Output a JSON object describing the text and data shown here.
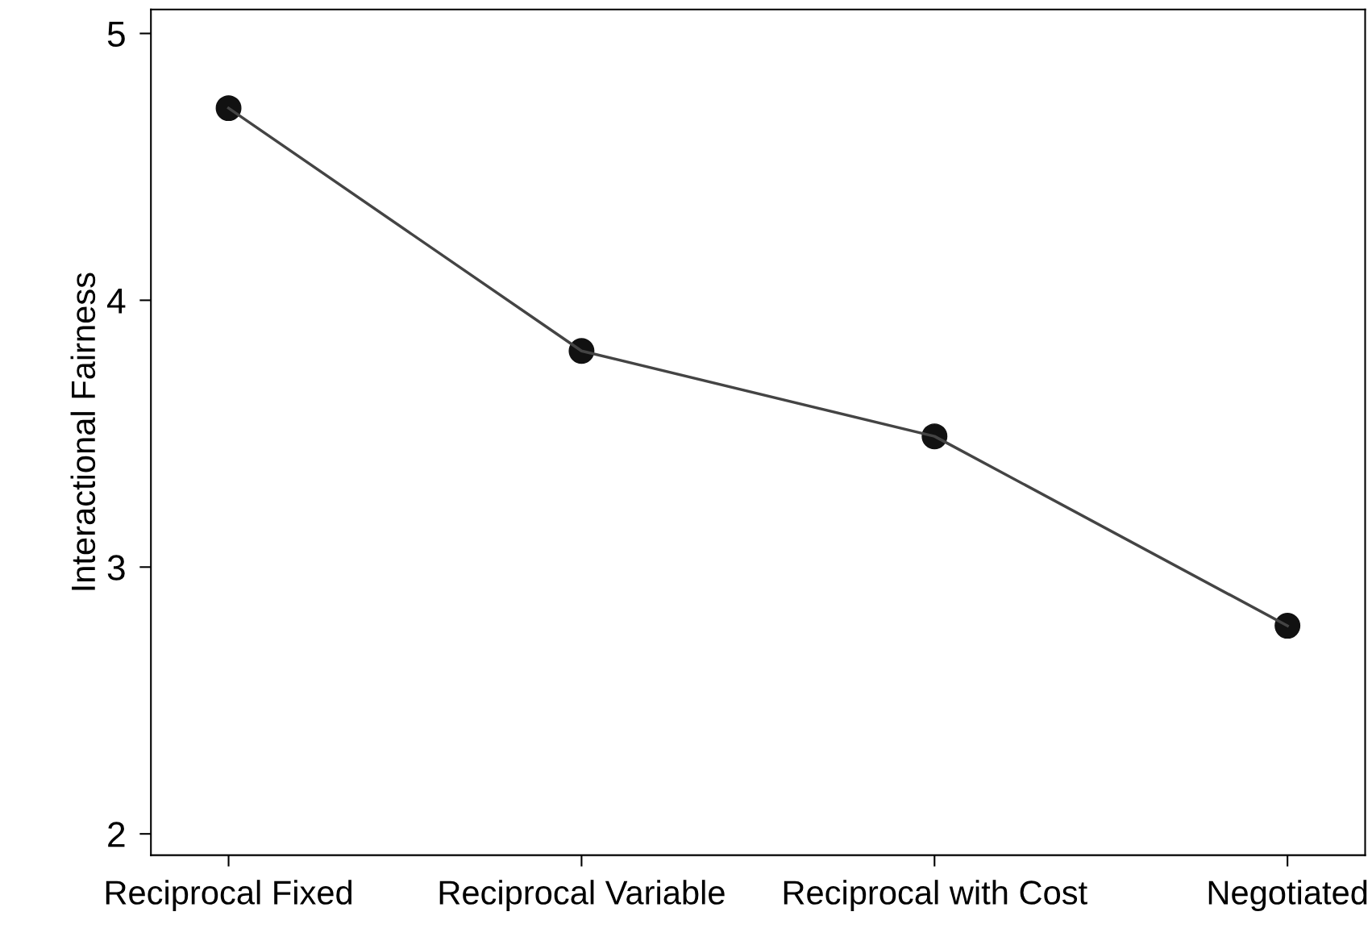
{
  "chart_data": {
    "type": "line",
    "ylabel": "Interactional Fairness",
    "categories": [
      "Reciprocal Fixed",
      "Reciprocal Variable",
      "Reciprocal with Cost",
      "Negotiated"
    ],
    "series": [
      {
        "color": "#444444",
        "colors": [
          "#111111",
          "#111111",
          "#111111",
          "#111111"
        ],
        "values": [
          4.72,
          3.81,
          3.49,
          2.78
        ]
      }
    ],
    "ylim": [
      1.92,
      5.09
    ],
    "yticks": [
      2,
      3,
      4,
      5
    ],
    "grid": false,
    "legend": false,
    "marker": "circle",
    "line_style": "solid"
  }
}
